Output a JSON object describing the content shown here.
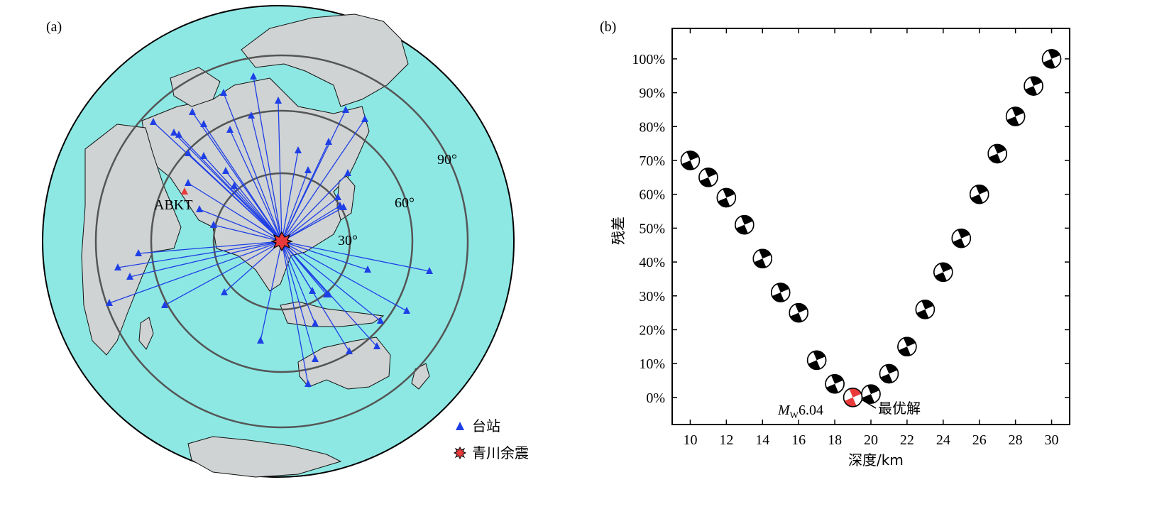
{
  "panel_a": {
    "label": "(a)",
    "ring_labels": [
      "30°",
      "60°",
      "90°"
    ],
    "highlight_station": "ABKT",
    "legend": {
      "station": "台站",
      "event": "青川余震"
    },
    "colors": {
      "ocean": "#8de8e4",
      "land": "#cfd3d3",
      "ray": "#1f3fe6",
      "station": "#1f3fe6",
      "highlight": "#e83a3a",
      "ring": "#555555"
    }
  },
  "panel_b": {
    "label": "(b)",
    "best_label": "最优解",
    "mw_prefix": "M",
    "mw_sub": "W",
    "mw_value": "6.04"
  },
  "chart_data": {
    "type": "scatter",
    "xlabel": "深度/km",
    "ylabel": "残差",
    "xlim": [
      9,
      31
    ],
    "ylim": [
      -8,
      109
    ],
    "xticks": [
      10,
      12,
      14,
      16,
      18,
      20,
      22,
      24,
      26,
      28,
      30
    ],
    "yticks": [
      0,
      10,
      20,
      30,
      40,
      50,
      60,
      70,
      80,
      90,
      100
    ],
    "ytick_labels": [
      "0%",
      "10%",
      "20%",
      "30%",
      "40%",
      "50%",
      "60%",
      "70%",
      "80%",
      "90%",
      "100%"
    ],
    "depth": [
      10,
      11,
      12,
      13,
      14,
      15,
      16,
      17,
      18,
      19,
      20,
      21,
      22,
      23,
      24,
      25,
      26,
      27,
      28,
      29,
      30
    ],
    "residual": [
      70,
      65,
      59,
      51,
      41,
      31,
      25,
      11,
      4,
      0,
      1,
      7,
      15,
      26,
      37,
      47,
      60,
      72,
      83,
      92,
      100
    ],
    "best_index": 9,
    "colors": {
      "best": "#e83a3a",
      "normal": "#000000"
    }
  }
}
